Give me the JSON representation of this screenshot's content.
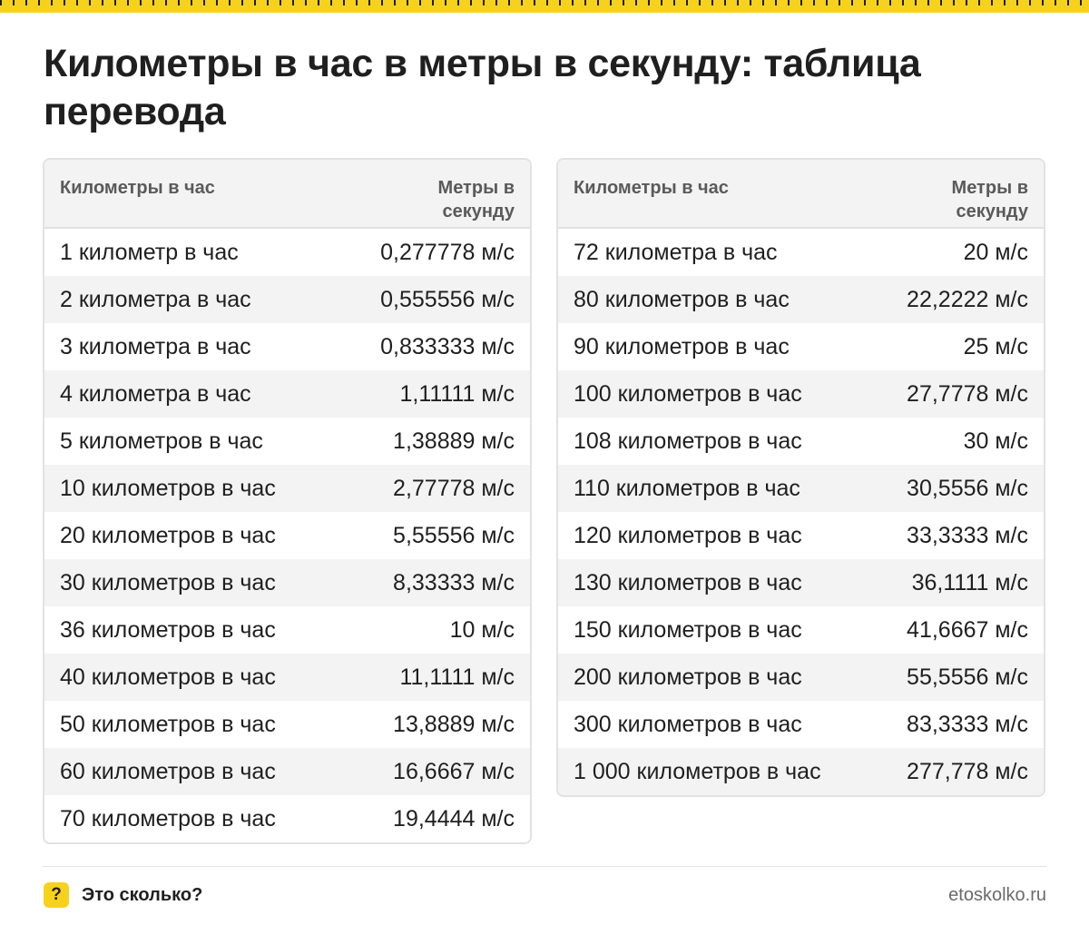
{
  "title": "Километры в час в метры в секунду: таблица перевода",
  "colors": {
    "accent": "#f7d21c",
    "stripe": "#f3f3f3",
    "border": "#e2e2e2"
  },
  "table_left": {
    "header": {
      "col1": "Километры в час",
      "col2": "Метры в секунду"
    },
    "rows": [
      {
        "k": "1 километр в час",
        "v": "0,277778 м/с"
      },
      {
        "k": "2 километра в час",
        "v": "0,555556 м/с"
      },
      {
        "k": "3 километра в час",
        "v": "0,833333 м/с"
      },
      {
        "k": "4 километра в час",
        "v": "1,11111 м/с"
      },
      {
        "k": "5 километров в час",
        "v": "1,38889 м/с"
      },
      {
        "k": "10 километров в час",
        "v": "2,77778 м/с"
      },
      {
        "k": "20 километров в час",
        "v": "5,55556 м/с"
      },
      {
        "k": "30 километров в час",
        "v": "8,33333 м/с"
      },
      {
        "k": "36 километров в час",
        "v": "10 м/с"
      },
      {
        "k": "40 километров в час",
        "v": "11,1111 м/с"
      },
      {
        "k": "50 километров в час",
        "v": "13,8889 м/с"
      },
      {
        "k": "60 километров в час",
        "v": "16,6667 м/с"
      },
      {
        "k": "70 километров в час",
        "v": "19,4444 м/с"
      }
    ]
  },
  "table_right": {
    "header": {
      "col1": "Километры в час",
      "col2": "Метры в секунду"
    },
    "rows": [
      {
        "k": "72 километра в час",
        "v": "20 м/с"
      },
      {
        "k": "80 километров в час",
        "v": "22,2222 м/с"
      },
      {
        "k": "90 километров в час",
        "v": "25 м/с"
      },
      {
        "k": "100 километров в час",
        "v": "27,7778 м/с"
      },
      {
        "k": "108 километров в час",
        "v": "30 м/с"
      },
      {
        "k": "110 километров в час",
        "v": "30,5556 м/с"
      },
      {
        "k": "120 километров в час",
        "v": "33,3333 м/с"
      },
      {
        "k": "130 километров в час",
        "v": "36,1111 м/с"
      },
      {
        "k": "150 километров в час",
        "v": "41,6667 м/с"
      },
      {
        "k": "200 километров в час",
        "v": "55,5556 м/с"
      },
      {
        "k": "300 километров в час",
        "v": "83,3333 м/с"
      },
      {
        "k": "1 000 километров в час",
        "v": "277,778 м/с"
      }
    ]
  },
  "footer": {
    "badge": "?",
    "brand": "Это сколько?",
    "site": "etoskolko.ru"
  }
}
